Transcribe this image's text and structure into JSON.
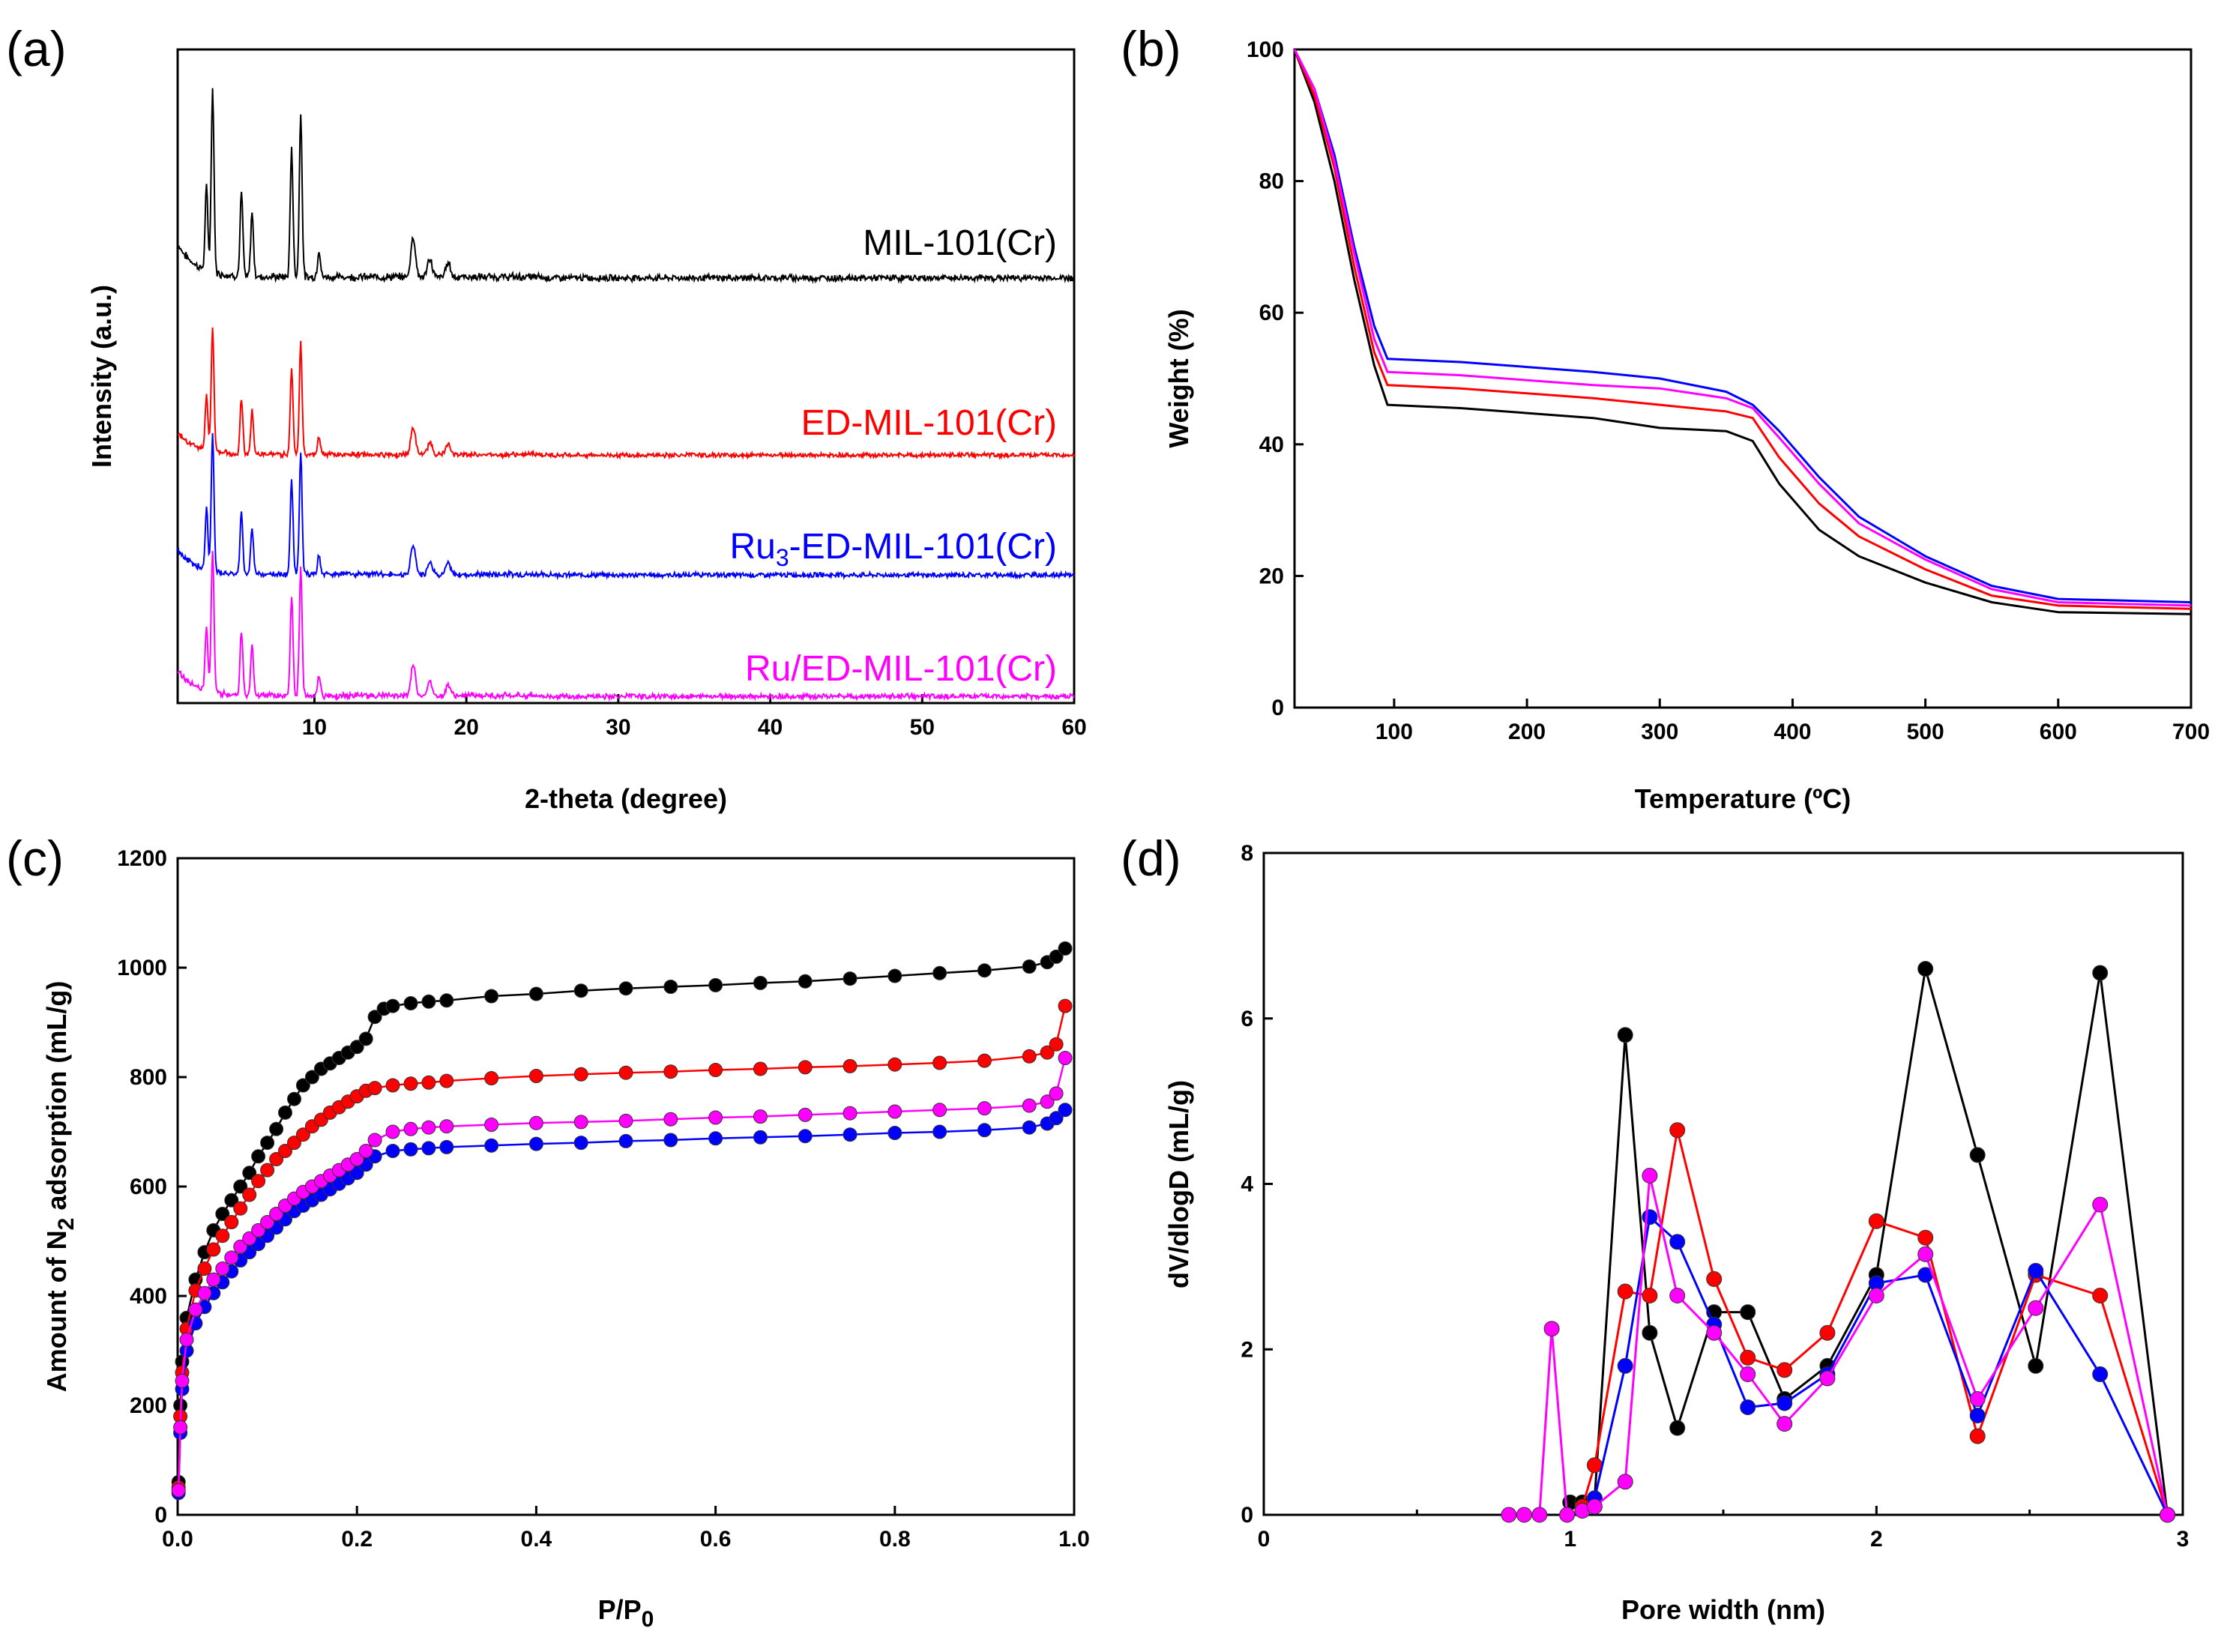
{
  "colors": {
    "MIL-101(Cr)": "#000000",
    "ED-MIL-101(Cr)": "#ff0000",
    "Ru3-ED-MIL-101(Cr)": "#0000ff",
    "Ru/ED-MIL-101(Cr)": "#ff00ff"
  },
  "chart_data": [
    {
      "panel": "(a)",
      "type": "line",
      "title": "",
      "xlabel": "2-theta (degree)",
      "ylabel": "Intensity (a.u.)",
      "xlim": [
        1,
        60
      ],
      "xticks": [
        "10",
        "20",
        "30",
        "40",
        "50",
        "60"
      ],
      "yticks": [],
      "peaks_2theta": [
        2.9,
        3.3,
        5.2,
        5.9,
        8.5,
        9.1,
        10.3,
        16.5,
        17.6,
        18.8
      ],
      "peak_rel_intensity": [
        0.45,
        1.0,
        0.45,
        0.35,
        0.7,
        0.9,
        0.15,
        0.22,
        0.1,
        0.08
      ],
      "series": [
        {
          "name": "MIL-101(Cr)",
          "label_main": "MIL-101(Cr)",
          "label_sub": "",
          "label_rest": "",
          "offset": 3
        },
        {
          "name": "ED-MIL-101(Cr)",
          "label_main": "ED-MIL-101(Cr)",
          "label_sub": "",
          "label_rest": "",
          "offset": 2
        },
        {
          "name": "Ru3-ED-MIL-101(Cr)",
          "label_main": "Ru",
          "label_sub": "3",
          "label_rest": "-ED-MIL-101(Cr)",
          "offset": 1
        },
        {
          "name": "Ru/ED-MIL-101(Cr)",
          "label_main": "Ru/ED-MIL-101(Cr)",
          "label_sub": "",
          "label_rest": "",
          "offset": 0
        }
      ]
    },
    {
      "panel": "(b)",
      "type": "line",
      "xlabel": "Temperature (ºC)",
      "ylabel": "Weight (%)",
      "xlim": [
        25,
        700
      ],
      "ylim": [
        0,
        100
      ],
      "xticks": [
        100,
        200,
        300,
        400,
        500,
        600,
        700
      ],
      "yticks": [
        0,
        20,
        40,
        60,
        80,
        100
      ],
      "series": [
        {
          "name": "MIL-101(Cr)",
          "x": [
            25,
            40,
            55,
            70,
            85,
            95,
            150,
            250,
            300,
            350,
            370,
            390,
            420,
            450,
            500,
            550,
            600,
            700
          ],
          "y": [
            100,
            92,
            80,
            65,
            52,
            46,
            45.5,
            44,
            42.5,
            42,
            40.5,
            34,
            27,
            23,
            19,
            16,
            14.5,
            14.2
          ]
        },
        {
          "name": "ED-MIL-101(Cr)",
          "x": [
            25,
            40,
            55,
            70,
            85,
            95,
            150,
            250,
            300,
            350,
            370,
            390,
            420,
            450,
            500,
            550,
            600,
            700
          ],
          "y": [
            100,
            93,
            82,
            67,
            54,
            49,
            48.5,
            47,
            46,
            45,
            44,
            38,
            31,
            26,
            21,
            17,
            15.5,
            15
          ]
        },
        {
          "name": "Ru3-ED-MIL-101(Cr)",
          "x": [
            25,
            40,
            55,
            70,
            85,
            95,
            150,
            250,
            300,
            350,
            370,
            390,
            420,
            450,
            500,
            550,
            600,
            700
          ],
          "y": [
            100,
            94,
            84,
            70,
            58,
            53,
            52.5,
            51,
            50,
            48,
            46,
            42,
            35,
            29,
            23,
            18.5,
            16.5,
            16
          ]
        },
        {
          "name": "Ru/ED-MIL-101(Cr)",
          "x": [
            25,
            40,
            55,
            70,
            85,
            95,
            150,
            250,
            300,
            350,
            370,
            390,
            420,
            450,
            500,
            550,
            600,
            700
          ],
          "y": [
            100,
            94,
            83,
            69,
            56,
            51,
            50.5,
            49,
            48.5,
            47,
            45.5,
            41,
            34,
            28,
            22.5,
            18,
            16,
            15.5
          ]
        }
      ]
    },
    {
      "panel": "(c)",
      "type": "scatter",
      "xlabel_main": "P/P",
      "xlabel_sub": "0",
      "ylabel_main": "Amount of N",
      "ylabel_sub": "2",
      "ylabel_rest": " adsorption (mL/g)",
      "xlim": [
        0,
        1.0
      ],
      "ylim": [
        0,
        1200
      ],
      "xticks": [
        "0.0",
        "0.2",
        "0.4",
        "0.6",
        "0.8",
        "1.0"
      ],
      "yticks": [
        0,
        200,
        400,
        600,
        800,
        1000,
        1200
      ],
      "series": [
        {
          "name": "MIL-101(Cr)",
          "x": [
            0.001,
            0.003,
            0.005,
            0.01,
            0.02,
            0.03,
            0.04,
            0.05,
            0.06,
            0.07,
            0.08,
            0.09,
            0.1,
            0.11,
            0.12,
            0.13,
            0.14,
            0.15,
            0.16,
            0.17,
            0.18,
            0.19,
            0.2,
            0.21,
            0.22,
            0.23,
            0.24,
            0.26,
            0.28,
            0.3,
            0.35,
            0.4,
            0.45,
            0.5,
            0.55,
            0.6,
            0.65,
            0.7,
            0.75,
            0.8,
            0.85,
            0.9,
            0.95,
            0.97,
            0.98,
            0.99
          ],
          "y": [
            60,
            200,
            280,
            360,
            430,
            480,
            520,
            550,
            575,
            600,
            625,
            655,
            680,
            705,
            735,
            760,
            785,
            800,
            815,
            825,
            835,
            845,
            855,
            870,
            910,
            925,
            930,
            935,
            938,
            940,
            948,
            952,
            958,
            962,
            965,
            968,
            972,
            975,
            980,
            985,
            990,
            995,
            1002,
            1010,
            1020,
            1035
          ]
        },
        {
          "name": "ED-MIL-101(Cr)",
          "x": [
            0.001,
            0.003,
            0.005,
            0.01,
            0.02,
            0.03,
            0.04,
            0.05,
            0.06,
            0.07,
            0.08,
            0.09,
            0.1,
            0.11,
            0.12,
            0.13,
            0.14,
            0.15,
            0.16,
            0.17,
            0.18,
            0.19,
            0.2,
            0.21,
            0.22,
            0.24,
            0.26,
            0.28,
            0.3,
            0.35,
            0.4,
            0.45,
            0.5,
            0.55,
            0.6,
            0.65,
            0.7,
            0.75,
            0.8,
            0.85,
            0.9,
            0.95,
            0.97,
            0.98,
            0.99
          ],
          "y": [
            50,
            180,
            260,
            340,
            410,
            450,
            485,
            510,
            535,
            560,
            585,
            610,
            630,
            650,
            665,
            680,
            695,
            710,
            722,
            735,
            745,
            755,
            765,
            775,
            780,
            785,
            788,
            790,
            793,
            798,
            802,
            805,
            808,
            810,
            813,
            815,
            818,
            820,
            823,
            826,
            830,
            838,
            845,
            860,
            930
          ]
        },
        {
          "name": "Ru3-ED-MIL-101(Cr)",
          "x": [
            0.001,
            0.003,
            0.005,
            0.01,
            0.02,
            0.03,
            0.04,
            0.05,
            0.06,
            0.07,
            0.08,
            0.09,
            0.1,
            0.11,
            0.12,
            0.13,
            0.14,
            0.15,
            0.16,
            0.17,
            0.18,
            0.19,
            0.2,
            0.21,
            0.22,
            0.24,
            0.26,
            0.28,
            0.3,
            0.35,
            0.4,
            0.45,
            0.5,
            0.55,
            0.6,
            0.65,
            0.7,
            0.75,
            0.8,
            0.85,
            0.9,
            0.95,
            0.97,
            0.98,
            0.99
          ],
          "y": [
            40,
            150,
            230,
            300,
            350,
            380,
            405,
            425,
            445,
            465,
            480,
            495,
            510,
            525,
            540,
            555,
            565,
            575,
            585,
            595,
            605,
            615,
            625,
            640,
            655,
            665,
            668,
            670,
            672,
            675,
            678,
            680,
            683,
            685,
            688,
            690,
            692,
            695,
            698,
            700,
            703,
            708,
            715,
            725,
            740
          ]
        },
        {
          "name": "Ru/ED-MIL-101(Cr)",
          "x": [
            0.001,
            0.003,
            0.005,
            0.01,
            0.02,
            0.03,
            0.04,
            0.05,
            0.06,
            0.07,
            0.08,
            0.09,
            0.1,
            0.11,
            0.12,
            0.13,
            0.14,
            0.15,
            0.16,
            0.17,
            0.18,
            0.19,
            0.2,
            0.21,
            0.22,
            0.24,
            0.26,
            0.28,
            0.3,
            0.35,
            0.4,
            0.45,
            0.5,
            0.55,
            0.6,
            0.65,
            0.7,
            0.75,
            0.8,
            0.85,
            0.9,
            0.95,
            0.97,
            0.98,
            0.99
          ],
          "y": [
            45,
            160,
            245,
            320,
            375,
            405,
            430,
            450,
            470,
            490,
            505,
            520,
            535,
            550,
            565,
            578,
            590,
            600,
            610,
            620,
            630,
            640,
            650,
            665,
            685,
            700,
            705,
            708,
            710,
            713,
            716,
            718,
            720,
            723,
            726,
            728,
            731,
            734,
            737,
            740,
            743,
            748,
            755,
            770,
            835
          ]
        }
      ]
    },
    {
      "panel": "(d)",
      "type": "line",
      "xlabel": "Pore width (nm)",
      "ylabel": "dV/dlogD (mL/g)",
      "xlim": [
        0,
        3
      ],
      "ylim": [
        0,
        8
      ],
      "xticks": [
        0,
        1,
        2,
        3
      ],
      "yticks": [
        0,
        2,
        4,
        6,
        8
      ],
      "series": [
        {
          "name": "MIL-101(Cr)",
          "x": [
            1.0,
            1.04,
            1.08,
            1.18,
            1.26,
            1.35,
            1.47,
            1.58,
            1.7,
            1.84,
            2.0,
            2.16,
            2.33,
            2.52,
            2.73,
            2.95
          ],
          "y": [
            0.15,
            0.15,
            0.2,
            5.8,
            2.2,
            1.05,
            2.45,
            2.45,
            1.4,
            1.8,
            2.9,
            6.6,
            4.35,
            1.8,
            6.55,
            0.0
          ]
        },
        {
          "name": "ED-MIL-101(Cr)",
          "x": [
            1.04,
            1.08,
            1.18,
            1.26,
            1.35,
            1.47,
            1.58,
            1.7,
            1.84,
            2.0,
            2.16,
            2.33,
            2.52,
            2.73,
            2.95
          ],
          "y": [
            0.1,
            0.6,
            2.7,
            2.65,
            4.65,
            2.85,
            1.9,
            1.75,
            2.2,
            3.55,
            3.35,
            0.95,
            2.9,
            2.65,
            0.0
          ]
        },
        {
          "name": "Ru3-ED-MIL-101(Cr)",
          "x": [
            1.04,
            1.08,
            1.18,
            1.26,
            1.35,
            1.47,
            1.58,
            1.7,
            1.84,
            2.0,
            2.16,
            2.33,
            2.52,
            2.73,
            2.95
          ],
          "y": [
            0.05,
            0.2,
            1.8,
            3.6,
            3.3,
            2.3,
            1.3,
            1.35,
            1.7,
            2.8,
            2.9,
            1.2,
            2.95,
            1.7,
            0.0
          ]
        },
        {
          "name": "Ru/ED-MIL-101(Cr)",
          "x": [
            0.8,
            0.85,
            0.9,
            0.94,
            0.99,
            1.04,
            1.08,
            1.18,
            1.26,
            1.35,
            1.47,
            1.58,
            1.7,
            1.84,
            2.0,
            2.16,
            2.33,
            2.52,
            2.73,
            2.95
          ],
          "y": [
            0.0,
            0.0,
            0.0,
            2.25,
            0.0,
            0.05,
            0.1,
            0.4,
            4.1,
            2.65,
            2.2,
            1.7,
            1.1,
            1.65,
            2.65,
            3.15,
            1.4,
            2.5,
            3.75,
            0.0
          ]
        }
      ]
    }
  ]
}
